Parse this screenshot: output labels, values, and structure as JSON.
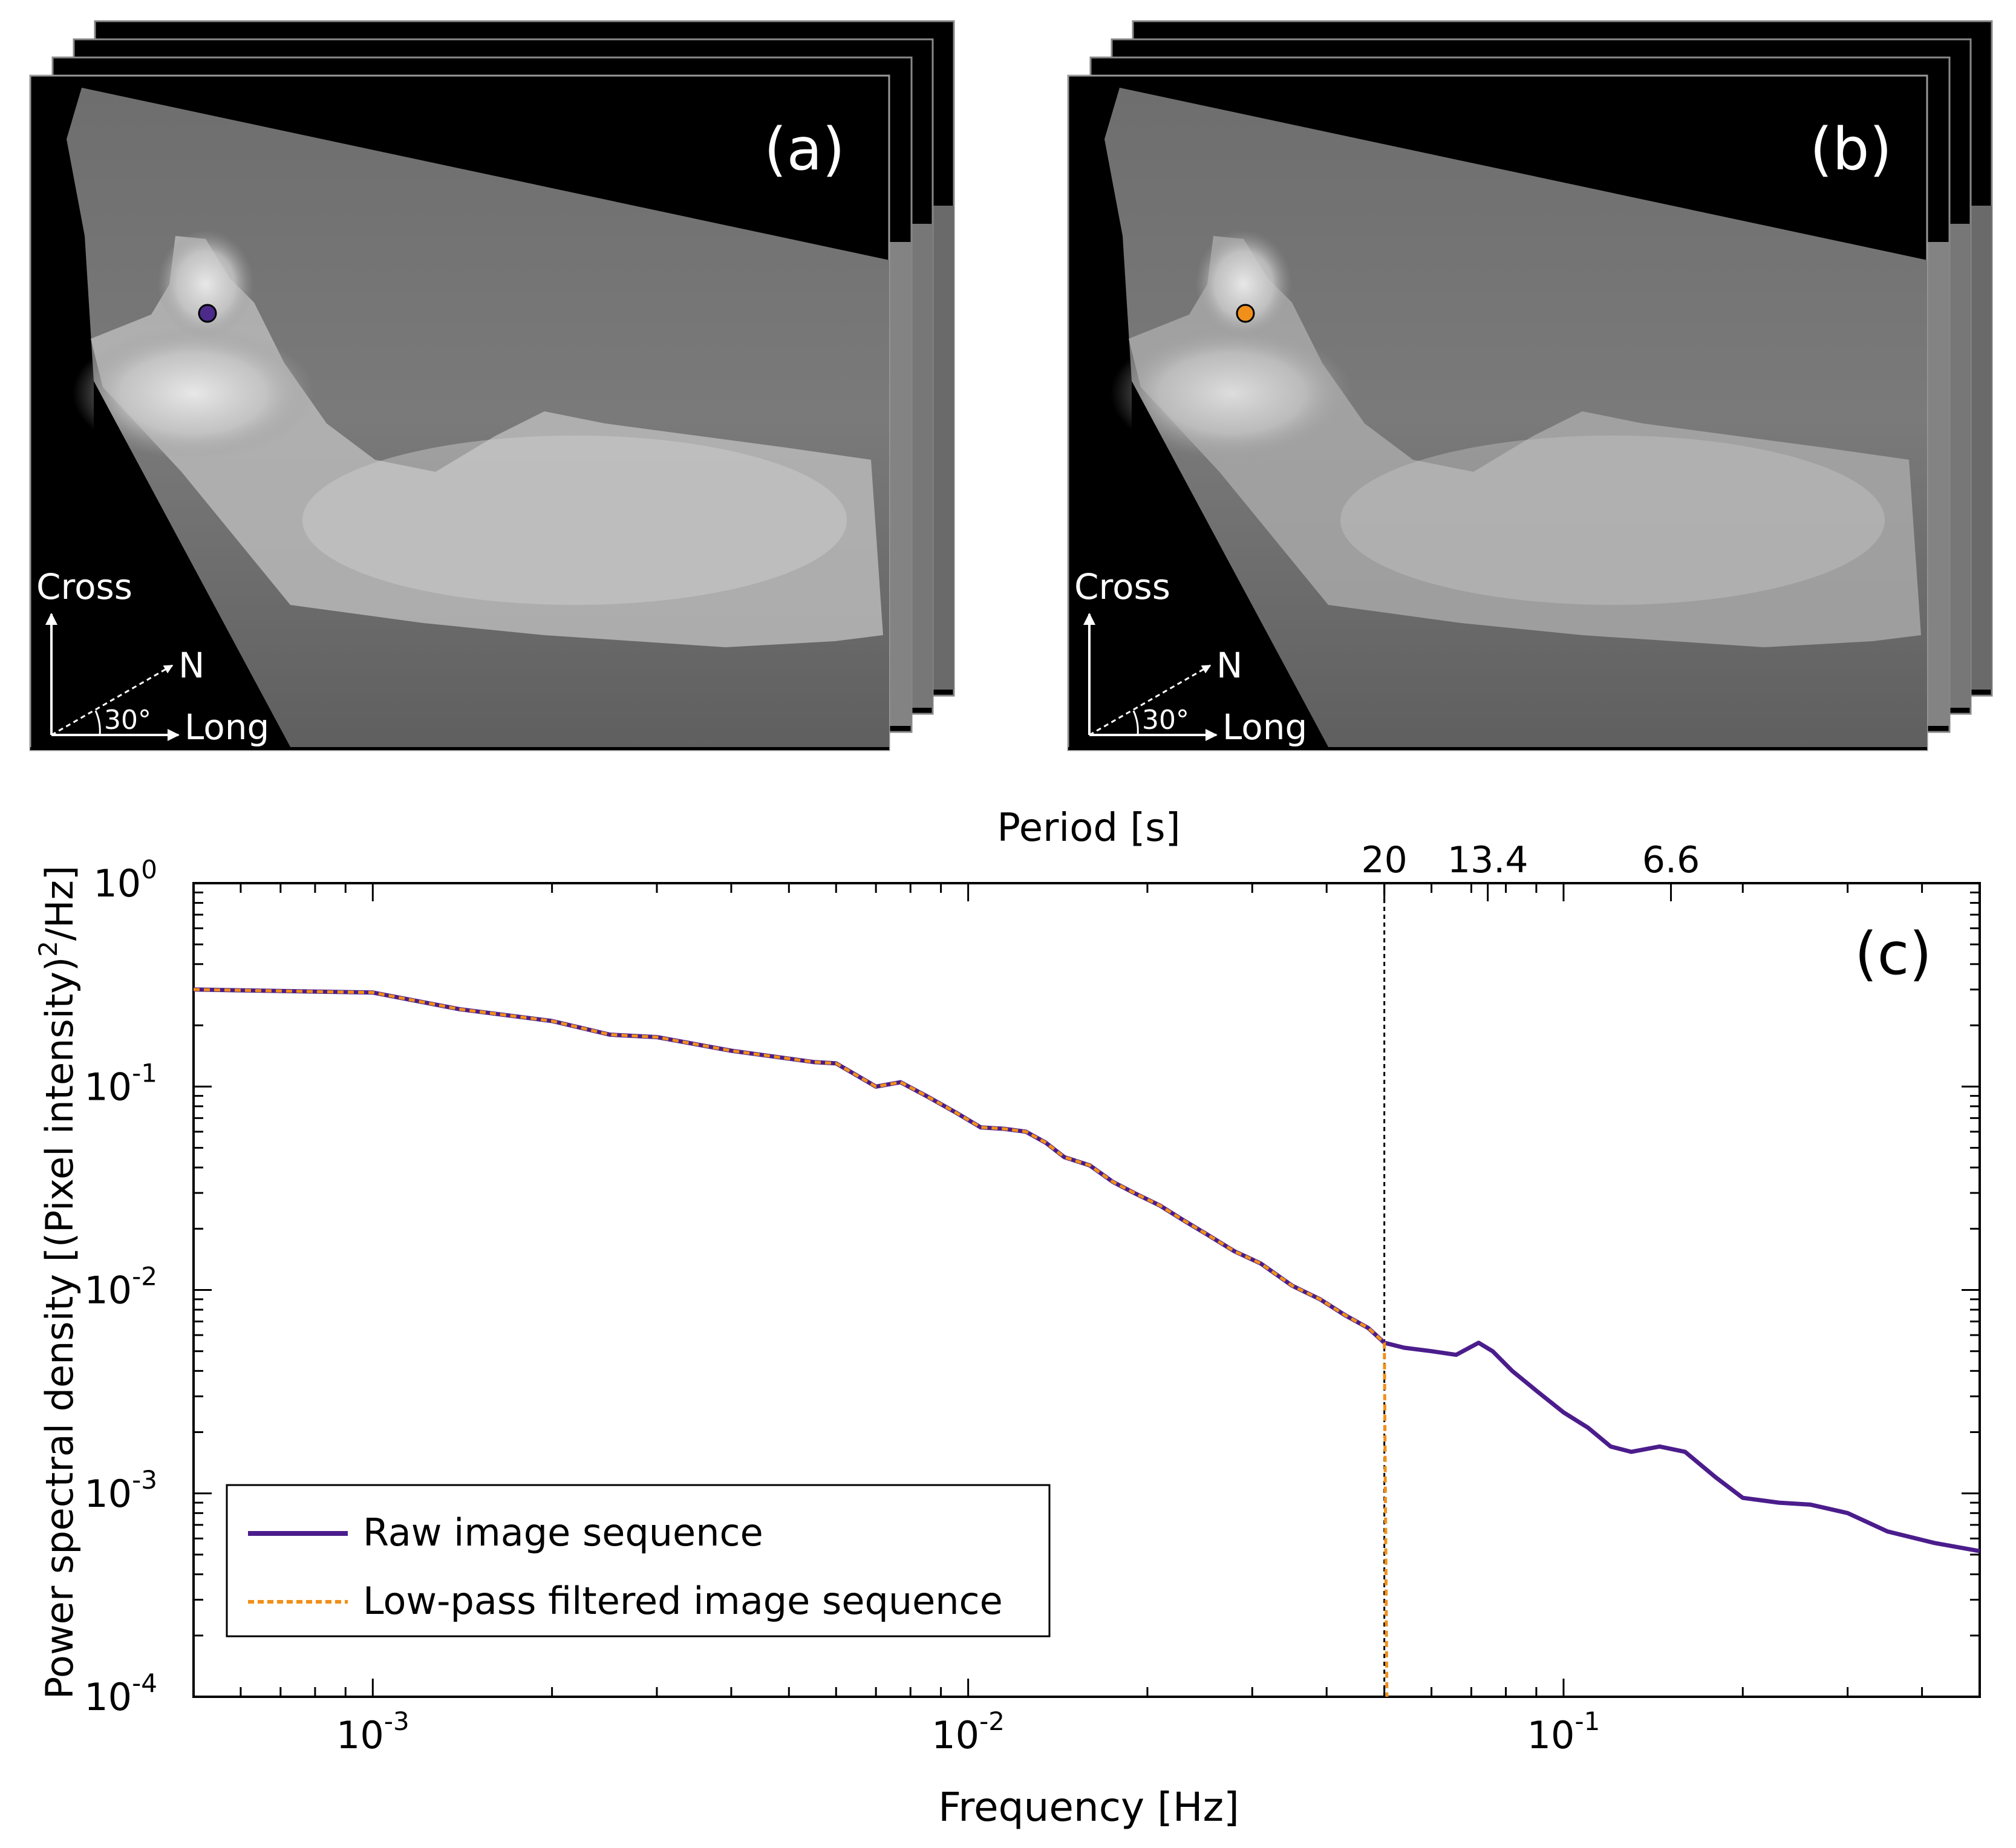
{
  "panels": [
    {
      "label": "(a)",
      "marker_color": "#4b2a8a",
      "compass": {
        "cross": "Cross",
        "north": "N",
        "angle": "30°",
        "long": "Long"
      }
    },
    {
      "label": "(b)",
      "marker_color": "#f0901a",
      "compass": {
        "cross": "Cross",
        "north": "N",
        "angle": "30°",
        "long": "Long"
      }
    }
  ],
  "chart_data": {
    "type": "line",
    "panel_label": "(c)",
    "title_top": "Period [s]",
    "xlabel": "Frequency [Hz]",
    "ylabel_main": "Power spectral density [(Pixel intensity)",
    "ylabel_sup": "2",
    "ylabel_tail": "/Hz]",
    "xscale": "log",
    "yscale": "log",
    "xlim": [
      0.0005,
      0.5
    ],
    "ylim": [
      0.0001,
      1
    ],
    "x_ticks": [
      {
        "value": 0.001,
        "base": "10",
        "exp": "-3"
      },
      {
        "value": 0.01,
        "base": "10",
        "exp": "-2"
      },
      {
        "value": 0.1,
        "base": "10",
        "exp": "-1"
      }
    ],
    "y_ticks": [
      {
        "value": 1,
        "base": "10",
        "exp": "0"
      },
      {
        "value": 0.1,
        "base": "10",
        "exp": "-1"
      },
      {
        "value": 0.01,
        "base": "10",
        "exp": "-2"
      },
      {
        "value": 0.001,
        "base": "10",
        "exp": "-3"
      },
      {
        "value": 0.0001,
        "base": "10",
        "exp": "-4"
      }
    ],
    "top_ticks": [
      {
        "label": "20",
        "freq": 0.05
      },
      {
        "label": "13.4",
        "freq": 0.0746
      },
      {
        "label": "6.6",
        "freq": 0.1515
      }
    ],
    "cutoff_frequency": 0.05,
    "legend_position": "bottom-left",
    "series": [
      {
        "name": "Raw image sequence",
        "color": "#4b1d8c",
        "style": "solid",
        "freq": [
          0.0005,
          0.0007,
          0.001,
          0.0014,
          0.002,
          0.0025,
          0.003,
          0.004,
          0.0055,
          0.006,
          0.007,
          0.0077,
          0.0085,
          0.0095,
          0.0105,
          0.0115,
          0.0125,
          0.0135,
          0.0145,
          0.016,
          0.0175,
          0.019,
          0.021,
          0.023,
          0.025,
          0.028,
          0.031,
          0.035,
          0.039,
          0.043,
          0.047,
          0.05,
          0.054,
          0.06,
          0.066,
          0.072,
          0.076,
          0.082,
          0.09,
          0.1,
          0.11,
          0.12,
          0.13,
          0.145,
          0.16,
          0.18,
          0.2,
          0.23,
          0.26,
          0.3,
          0.35,
          0.42,
          0.5
        ],
        "psd": [
          0.3,
          0.295,
          0.29,
          0.24,
          0.21,
          0.18,
          0.175,
          0.15,
          0.132,
          0.13,
          0.1,
          0.105,
          0.09,
          0.075,
          0.063,
          0.062,
          0.06,
          0.053,
          0.045,
          0.041,
          0.034,
          0.03,
          0.026,
          0.022,
          0.019,
          0.0155,
          0.0135,
          0.0105,
          0.009,
          0.0075,
          0.0065,
          0.0055,
          0.0052,
          0.005,
          0.0048,
          0.0055,
          0.005,
          0.004,
          0.0032,
          0.0025,
          0.0021,
          0.0017,
          0.0016,
          0.0017,
          0.0016,
          0.0012,
          0.00095,
          0.0009,
          0.00088,
          0.0008,
          0.00065,
          0.00057,
          0.00052
        ]
      },
      {
        "name": "Low-pass filtered image sequence",
        "color": "#f0901a",
        "style": "dashed",
        "freq": [
          0.0005,
          0.0007,
          0.001,
          0.0014,
          0.002,
          0.0025,
          0.003,
          0.004,
          0.0055,
          0.006,
          0.007,
          0.0077,
          0.0085,
          0.0095,
          0.0105,
          0.0115,
          0.0125,
          0.0135,
          0.0145,
          0.016,
          0.0175,
          0.019,
          0.021,
          0.023,
          0.025,
          0.028,
          0.031,
          0.035,
          0.039,
          0.043,
          0.047,
          0.05,
          0.0502,
          0.0505
        ],
        "psd": [
          0.3,
          0.295,
          0.29,
          0.24,
          0.21,
          0.18,
          0.175,
          0.15,
          0.132,
          0.13,
          0.1,
          0.105,
          0.09,
          0.075,
          0.063,
          0.062,
          0.06,
          0.053,
          0.045,
          0.041,
          0.034,
          0.03,
          0.026,
          0.022,
          0.019,
          0.0155,
          0.0135,
          0.0105,
          0.009,
          0.0075,
          0.0065,
          0.0055,
          0.001,
          0.0001
        ]
      }
    ]
  }
}
